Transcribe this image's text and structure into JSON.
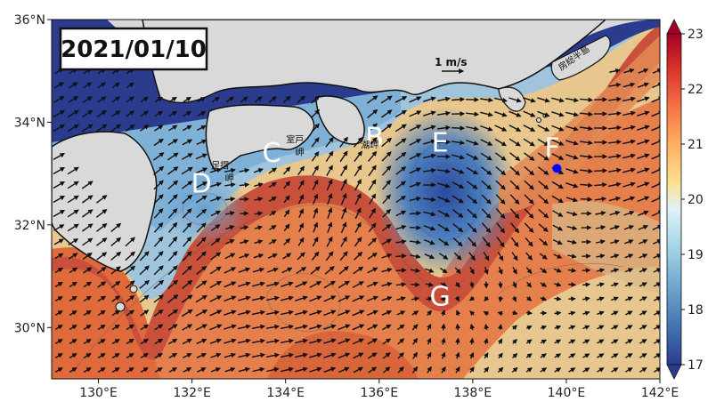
{
  "date": "2021/01/10",
  "scale_label": "1 m/s",
  "axes": {
    "x_ticks": [
      {
        "value": 130,
        "label": "130°E"
      },
      {
        "value": 132,
        "label": "132°E"
      },
      {
        "value": 134,
        "label": "134°E"
      },
      {
        "value": 136,
        "label": "136°E"
      },
      {
        "value": 138,
        "label": "138°E"
      },
      {
        "value": 140,
        "label": "140°E"
      },
      {
        "value": 142,
        "label": "142°E"
      }
    ],
    "y_ticks": [
      {
        "value": 30,
        "label": "30°N"
      },
      {
        "value": 32,
        "label": "32°N"
      },
      {
        "value": 34,
        "label": "34°N"
      },
      {
        "value": 36,
        "label": "36°N"
      }
    ],
    "lon_range": [
      129,
      142
    ],
    "lat_range": [
      29,
      36
    ]
  },
  "colorbar": {
    "min": 17,
    "max": 23,
    "ticks": [
      {
        "value": 17,
        "label": "17"
      },
      {
        "value": 18,
        "label": "18"
      },
      {
        "value": 19,
        "label": "19"
      },
      {
        "value": 20,
        "label": "20"
      },
      {
        "value": 21,
        "label": "21"
      },
      {
        "value": 22,
        "label": "22"
      },
      {
        "value": 23,
        "label": "23"
      }
    ],
    "colors": [
      "#2b3c8f",
      "#4575b4",
      "#74add1",
      "#abd9e9",
      "#e0f3f8",
      "#fee090",
      "#fdae61",
      "#f46d43",
      "#d73027",
      "#a50026"
    ]
  },
  "region_labels": [
    {
      "text": "D",
      "lon": 132.2,
      "lat": 32.8
    },
    {
      "text": "C",
      "lon": 133.7,
      "lat": 33.4
    },
    {
      "text": "B",
      "lon": 135.9,
      "lat": 33.7
    },
    {
      "text": "E",
      "lon": 137.3,
      "lat": 33.6
    },
    {
      "text": "F",
      "lon": 139.7,
      "lat": 33.5
    },
    {
      "text": "G",
      "lon": 137.3,
      "lat": 30.6
    }
  ],
  "place_labels": [
    {
      "text": "足摺",
      "lon": 132.6,
      "lat": 33.1
    },
    {
      "text": "岬",
      "lon": 132.8,
      "lat": 32.85
    },
    {
      "text": "室戸",
      "lon": 134.2,
      "lat": 33.6
    },
    {
      "text": "岬",
      "lon": 134.3,
      "lat": 33.35
    },
    {
      "text": "潮岬",
      "lon": 135.8,
      "lat": 33.5
    },
    {
      "text": "房総半島",
      "lon": 140.2,
      "lat": 35.2
    }
  ],
  "marker": {
    "lon": 139.8,
    "lat": 33.1,
    "color": "#0000ff"
  }
}
